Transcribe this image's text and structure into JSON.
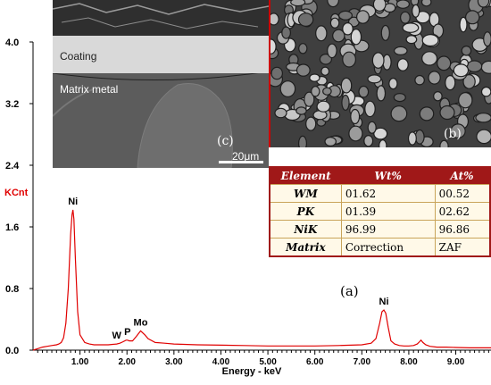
{
  "chart_data": {
    "type": "line",
    "xlabel": "Energy - keV",
    "ylabel": "KCnt",
    "x_ticks": [
      "1.00",
      "2.00",
      "3.00",
      "4.00",
      "5.00",
      "6.00",
      "7.00",
      "8.00",
      "9.00"
    ],
    "y_ticks": [
      "0.0",
      "0.8",
      "1.6",
      "2.4",
      "3.2",
      "4.0"
    ],
    "xlim": [
      0.0,
      9.75
    ],
    "ylim": [
      0.0,
      4.0
    ],
    "grid": false,
    "line_color": "#e00000",
    "peaks": [
      {
        "label": "Ni",
        "x": 0.85,
        "y": 1.82
      },
      {
        "label": "W",
        "x": 1.78,
        "y": 0.08
      },
      {
        "label": "P",
        "x": 2.01,
        "y": 0.13
      },
      {
        "label": "Mo",
        "x": 2.29,
        "y": 0.25
      },
      {
        "label": "Ni",
        "x": 7.47,
        "y": 0.52
      },
      {
        "label": "",
        "x": 8.26,
        "y": 0.13
      }
    ],
    "series": [
      {
        "x": [
          0.0,
          0.1,
          0.2,
          0.3,
          0.4,
          0.5,
          0.55,
          0.6,
          0.65,
          0.7,
          0.75,
          0.8,
          0.83,
          0.85,
          0.87,
          0.9,
          0.95,
          1.0,
          1.1,
          1.2,
          1.3,
          1.4,
          1.5,
          1.6,
          1.7,
          1.78,
          1.85,
          1.92,
          1.98,
          2.01,
          2.05,
          2.12,
          2.2,
          2.29,
          2.38,
          2.45,
          2.6,
          2.8,
          3.0,
          3.5,
          4.0,
          4.5,
          5.0,
          5.5,
          6.0,
          6.5,
          7.0,
          7.2,
          7.3,
          7.38,
          7.43,
          7.47,
          7.51,
          7.56,
          7.62,
          7.7,
          7.8,
          7.9,
          8.0,
          8.1,
          8.18,
          8.23,
          8.26,
          8.3,
          8.36,
          8.45,
          8.6,
          8.8,
          9.0,
          9.3,
          9.75
        ],
        "y": [
          0.0,
          0.02,
          0.04,
          0.05,
          0.06,
          0.07,
          0.08,
          0.1,
          0.16,
          0.35,
          0.8,
          1.5,
          1.76,
          1.82,
          1.7,
          1.2,
          0.5,
          0.2,
          0.1,
          0.08,
          0.07,
          0.07,
          0.07,
          0.07,
          0.075,
          0.08,
          0.09,
          0.11,
          0.13,
          0.13,
          0.12,
          0.12,
          0.18,
          0.25,
          0.2,
          0.15,
          0.1,
          0.09,
          0.08,
          0.07,
          0.065,
          0.06,
          0.055,
          0.055,
          0.055,
          0.06,
          0.07,
          0.09,
          0.15,
          0.35,
          0.5,
          0.52,
          0.48,
          0.3,
          0.12,
          0.08,
          0.06,
          0.055,
          0.055,
          0.06,
          0.08,
          0.11,
          0.13,
          0.1,
          0.07,
          0.05,
          0.04,
          0.04,
          0.035,
          0.03,
          0.03
        ]
      }
    ],
    "panel_label": "(a)"
  },
  "sem_coating": {
    "panel_label": "(c)",
    "coating_label": "Coating",
    "matrix_label": "Matrix metal",
    "scale_bar": "20μm"
  },
  "sem_surface": {
    "panel_label": "(b)"
  },
  "composition_table": {
    "headers": [
      "Element",
      "Wt%",
      "At%"
    ],
    "rows": [
      [
        "WM",
        "01.62",
        "00.52"
      ],
      [
        "PK",
        "01.39",
        "02.62"
      ],
      [
        "NiK",
        "96.99",
        "96.86"
      ],
      [
        "Matrix",
        "Correction",
        "ZAF"
      ]
    ]
  }
}
